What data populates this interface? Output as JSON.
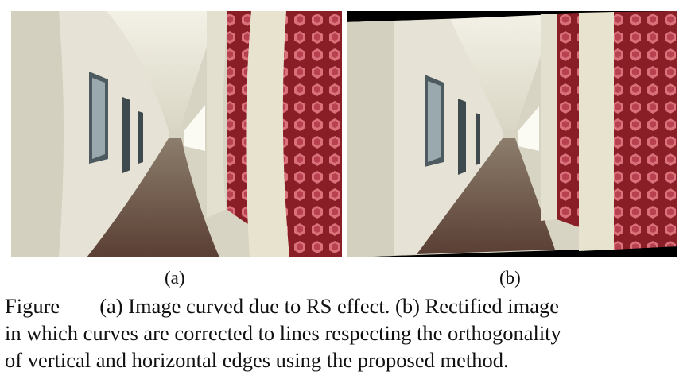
{
  "figure": {
    "panels": [
      {
        "label": "(a)"
      },
      {
        "label": "(b)"
      }
    ],
    "caption": {
      "prefix": "Figure",
      "line1": "(a) Image curved due to RS effect. (b) Rectified image",
      "line2": "in which curves are corrected to lines respecting the orthogonality",
      "line3": "of vertical and horizontal edges using the proposed method."
    }
  }
}
